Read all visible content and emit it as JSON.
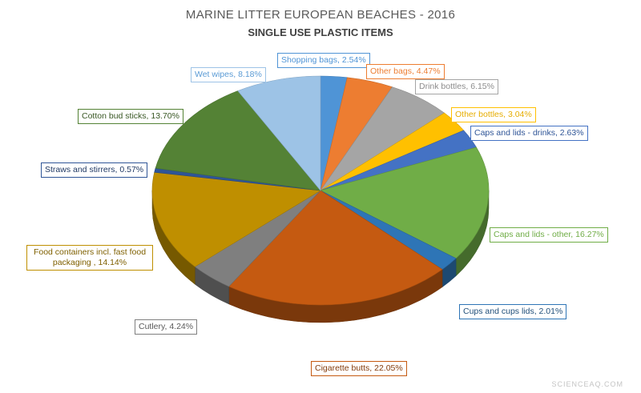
{
  "chart_data": {
    "type": "pie",
    "title": "MARINE LITTER EUROPEAN BEACHES - 2016",
    "subtitle": "SINGLE USE PLASTIC ITEMS",
    "slices": [
      {
        "label": "Shopping bags, 2.54%",
        "value": 2.54,
        "color": "#4f94d6",
        "text_color": "#4f94d6"
      },
      {
        "label": "Other bags, 4.47%",
        "value": 4.47,
        "color": "#ed7d31",
        "text_color": "#ed7d31"
      },
      {
        "label": "Drink bottles, 6.15%",
        "value": 6.15,
        "color": "#a5a5a5",
        "text_color": "#8c8c8c"
      },
      {
        "label": "Other bottles, 3.04%",
        "value": 3.04,
        "color": "#ffc000",
        "text_color": "#e6ad00"
      },
      {
        "label": "Caps and lids - drinks, 2.63%",
        "value": 2.63,
        "color": "#4472c4",
        "text_color": "#2f5597"
      },
      {
        "label": "Caps and lids - other, 16.27%",
        "value": 16.27,
        "color": "#70ad47",
        "text_color": "#70ad47"
      },
      {
        "label": "Cups and cups lids, 2.01%",
        "value": 2.01,
        "color": "#2e75b6",
        "text_color": "#1f4e79"
      },
      {
        "label": "Cigarette butts, 22.05%",
        "value": 22.05,
        "color": "#c55a11",
        "text_color": "#843c0c"
      },
      {
        "label": "Cutlery, 4.24%",
        "value": 4.24,
        "color": "#7f7f7f",
        "text_color": "#595959"
      },
      {
        "label": "Food containers incl. fast food packaging , 14.14%",
        "value": 14.14,
        "color": "#bf8f00",
        "text_color": "#7f6000"
      },
      {
        "label": "Straws and stirrers, 0.57%",
        "value": 0.57,
        "color": "#2f5597",
        "text_color": "#1f3864"
      },
      {
        "label": "Cotton bud sticks, 13.70%",
        "value": 13.7,
        "color": "#548235",
        "text_color": "#385723"
      },
      {
        "label": "Wet wipes, 8.18%",
        "value": 8.18,
        "color": "#9dc3e6",
        "text_color": "#5b9bd5"
      }
    ]
  },
  "watermark": "SCIENCEAQ.COM"
}
